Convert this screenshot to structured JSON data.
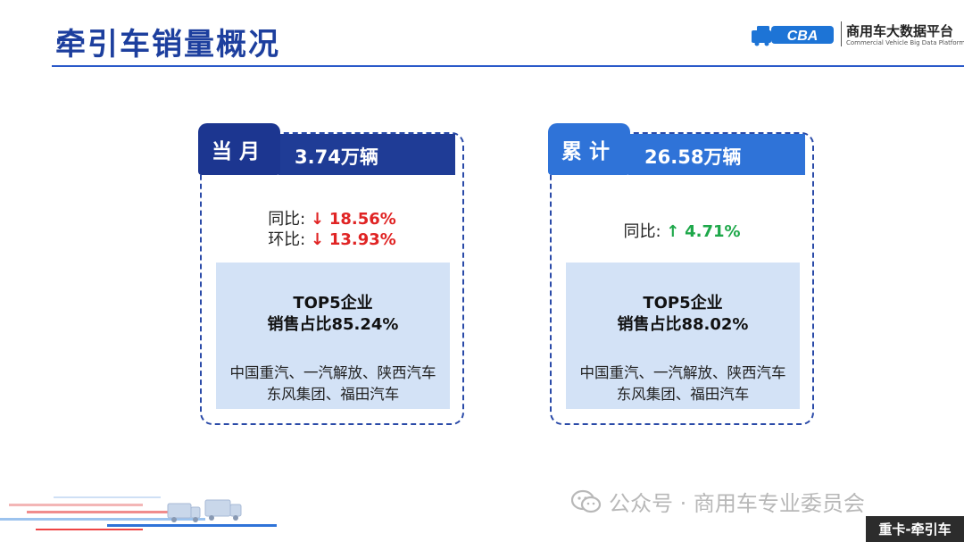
{
  "header": {
    "title": "牵引车销量概况",
    "logo_mark": "CBA",
    "logo_cn": "商用车大数据平台",
    "logo_en": "Commercial Vehicle Big Data Platform"
  },
  "cards": {
    "monthly": {
      "tag": "当月",
      "value": "3.74万辆",
      "yoy_label": "同比:",
      "yoy_arrow": "↓",
      "yoy_value": "18.56%",
      "mom_label": "环比:",
      "mom_arrow": "↓",
      "mom_value": "13.93%",
      "top5_title": "TOP5企业",
      "top5_share": "销售占比85.24%",
      "companies_line1": "中国重汽、一汽解放、陕西汽车",
      "companies_line2": "东风集团、福田汽车"
    },
    "cumulative": {
      "tag": "累计",
      "value": "26.58万辆",
      "yoy_label": "同比:",
      "yoy_arrow": "↑",
      "yoy_value": "4.71%",
      "top5_title": "TOP5企业",
      "top5_share": "销售占比88.02%",
      "companies_line1": "中国重汽、一汽解放、陕西汽车",
      "companies_line2": "东风集团、福田汽车"
    }
  },
  "watermark": {
    "text": "公众号 · 商用车专业委员会"
  },
  "footer": {
    "tag": "重卡-牵引车"
  },
  "colors": {
    "title": "#1d3f9e",
    "dark_blue": "#1f3c96",
    "bright_blue": "#2f73d8",
    "panel": "#d3e2f6",
    "down": "#e02424",
    "up": "#1ea84a"
  },
  "icons": {
    "logo": "truck-logo-icon",
    "watermark": "wechat-icon",
    "decor": "speeding-trucks-decor"
  }
}
